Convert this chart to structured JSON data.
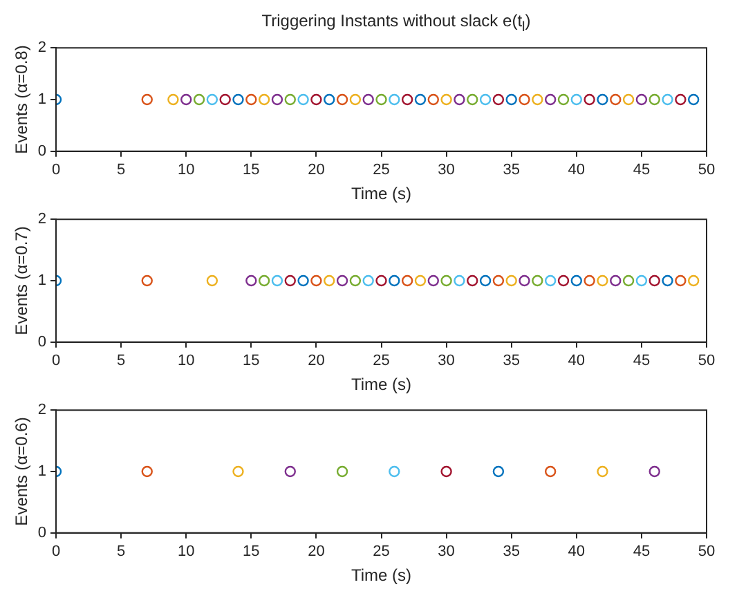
{
  "chart_data": [
    {
      "type": "scatter",
      "title": "Triggering Instants without slack e(t$_{l}$)",
      "xlabel": "Time (s)",
      "ylabel": "Events (α=0.8)",
      "marker": "circle",
      "grid": false,
      "xlim": [
        0,
        50
      ],
      "ylim": [
        0,
        2
      ],
      "xticks": [
        0,
        5,
        10,
        15,
        20,
        25,
        30,
        35,
        40,
        45,
        50
      ],
      "yticks": [
        0,
        1,
        2
      ],
      "x": [
        0,
        7,
        9,
        10,
        11,
        12,
        13,
        14,
        15,
        16,
        17,
        18,
        19,
        20,
        21,
        22,
        23,
        24,
        25,
        26,
        27,
        28,
        29,
        30,
        31,
        32,
        33,
        34,
        35,
        36,
        37,
        38,
        39,
        40,
        41,
        42,
        43,
        44,
        45,
        46,
        47,
        48,
        49
      ],
      "values": [
        1,
        1,
        1,
        1,
        1,
        1,
        1,
        1,
        1,
        1,
        1,
        1,
        1,
        1,
        1,
        1,
        1,
        1,
        1,
        1,
        1,
        1,
        1,
        1,
        1,
        1,
        1,
        1,
        1,
        1,
        1,
        1,
        1,
        1,
        1,
        1,
        1,
        1,
        1,
        1,
        1,
        1,
        1
      ],
      "colors": [
        "#0072bd",
        "#d95319",
        "#edb120",
        "#7e2f8e",
        "#77ac30",
        "#4dbeee",
        "#a2142f",
        "#0072bd",
        "#d95319",
        "#edb120",
        "#7e2f8e",
        "#77ac30",
        "#4dbeee",
        "#a2142f",
        "#0072bd",
        "#d95319",
        "#edb120",
        "#7e2f8e",
        "#77ac30",
        "#4dbeee",
        "#a2142f",
        "#0072bd",
        "#d95319",
        "#edb120",
        "#7e2f8e",
        "#77ac30",
        "#4dbeee",
        "#a2142f",
        "#0072bd",
        "#d95319",
        "#edb120",
        "#7e2f8e",
        "#77ac30",
        "#4dbeee",
        "#a2142f",
        "#0072bd",
        "#d95319",
        "#edb120",
        "#7e2f8e",
        "#77ac30",
        "#4dbeee",
        "#a2142f",
        "#0072bd"
      ]
    },
    {
      "type": "scatter",
      "xlabel": "Time (s)",
      "ylabel": "Events (α=0.7)",
      "marker": "circle",
      "grid": false,
      "xlim": [
        0,
        50
      ],
      "ylim": [
        0,
        2
      ],
      "xticks": [
        0,
        5,
        10,
        15,
        20,
        25,
        30,
        35,
        40,
        45,
        50
      ],
      "yticks": [
        0,
        1,
        2
      ],
      "x": [
        0,
        7,
        12,
        15,
        16,
        17,
        18,
        19,
        20,
        21,
        22,
        23,
        24,
        25,
        26,
        27,
        28,
        29,
        30,
        31,
        32,
        33,
        34,
        35,
        36,
        37,
        38,
        39,
        40,
        41,
        42,
        43,
        44,
        45,
        46,
        47,
        48,
        49
      ],
      "values": [
        1,
        1,
        1,
        1,
        1,
        1,
        1,
        1,
        1,
        1,
        1,
        1,
        1,
        1,
        1,
        1,
        1,
        1,
        1,
        1,
        1,
        1,
        1,
        1,
        1,
        1,
        1,
        1,
        1,
        1,
        1,
        1,
        1,
        1,
        1,
        1,
        1,
        1
      ],
      "colors": [
        "#0072bd",
        "#d95319",
        "#edb120",
        "#7e2f8e",
        "#77ac30",
        "#4dbeee",
        "#a2142f",
        "#0072bd",
        "#d95319",
        "#edb120",
        "#7e2f8e",
        "#77ac30",
        "#4dbeee",
        "#a2142f",
        "#0072bd",
        "#d95319",
        "#edb120",
        "#7e2f8e",
        "#77ac30",
        "#4dbeee",
        "#a2142f",
        "#0072bd",
        "#d95319",
        "#edb120",
        "#7e2f8e",
        "#77ac30",
        "#4dbeee",
        "#a2142f",
        "#0072bd",
        "#d95319",
        "#edb120",
        "#7e2f8e",
        "#77ac30",
        "#4dbeee",
        "#a2142f",
        "#0072bd",
        "#d95319",
        "#edb120"
      ]
    },
    {
      "type": "scatter",
      "xlabel": "Time (s)",
      "ylabel": "Events (α=0.6)",
      "marker": "circle",
      "grid": false,
      "xlim": [
        0,
        50
      ],
      "ylim": [
        0,
        2
      ],
      "xticks": [
        0,
        5,
        10,
        15,
        20,
        25,
        30,
        35,
        40,
        45,
        50
      ],
      "yticks": [
        0,
        1,
        2
      ],
      "x": [
        0,
        7,
        14,
        18,
        22,
        26,
        30,
        34,
        38,
        42,
        46
      ],
      "values": [
        1,
        1,
        1,
        1,
        1,
        1,
        1,
        1,
        1,
        1,
        1
      ],
      "colors": [
        "#0072bd",
        "#d95319",
        "#edb120",
        "#7e2f8e",
        "#77ac30",
        "#4dbeee",
        "#a2142f",
        "#0072bd",
        "#d95319",
        "#edb120",
        "#7e2f8e"
      ]
    }
  ]
}
